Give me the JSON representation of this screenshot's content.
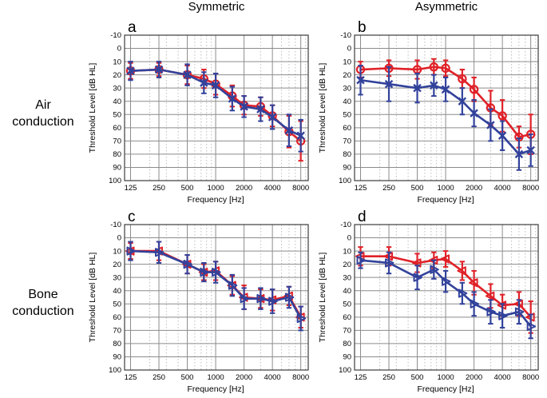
{
  "figure": {
    "column_titles": [
      "Symmetric",
      "Asymmetric"
    ],
    "row_labels": [
      {
        "line1": "Air",
        "line2": "conduction"
      },
      {
        "line1": "Bone",
        "line2": "conduction"
      }
    ]
  },
  "colors": {
    "red_series": "#e02128",
    "blue_series": "#32429b",
    "grid_major": "#8c8c8c",
    "grid_minor": "#bdbdbd",
    "axis_box": "#3c3c3c",
    "text": "#000000"
  },
  "chart_data": [
    {
      "type": "line",
      "panel_label": "a",
      "row_context": "Air conduction",
      "column_context": "Symmetric",
      "xlabel": "Frequency [Hz]",
      "ylabel": "Threshold Level [dB HL]",
      "x_scale": "log",
      "xlim": [
        108,
        9600
      ],
      "ylim": [
        -10,
        100
      ],
      "y_inverted": true,
      "xticks": [
        125,
        250,
        500,
        1000,
        2000,
        4000,
        8000
      ],
      "yticks": [
        -10,
        0,
        10,
        20,
        30,
        40,
        50,
        60,
        70,
        80,
        90,
        100
      ],
      "x_minor_gridlines": [
        200,
        300,
        400,
        600,
        700,
        800,
        900,
        3000,
        5000,
        6000,
        7000,
        9000
      ],
      "x": [
        125,
        250,
        500,
        750,
        1000,
        1500,
        2000,
        3000,
        4000,
        6000,
        8000
      ],
      "series": [
        {
          "color": "red",
          "marker": "circle",
          "values": [
            17,
            16,
            20,
            23,
            27,
            36,
            43,
            44,
            51,
            63,
            70
          ],
          "err": [
            6,
            5,
            7,
            7,
            8,
            8,
            7,
            7,
            8,
            12,
            15
          ]
        },
        {
          "color": "blue",
          "marker": "x",
          "values": [
            17,
            16,
            20,
            26,
            28,
            38,
            44,
            46,
            52,
            62,
            66
          ],
          "err": [
            7,
            6,
            8,
            8,
            9,
            9,
            8,
            9,
            9,
            12,
            12
          ]
        }
      ]
    },
    {
      "type": "line",
      "panel_label": "b",
      "row_context": "Air conduction",
      "column_context": "Asymmetric",
      "xlabel": "Frequency [Hz]",
      "ylabel": "Threshold Level [dB HL]",
      "x_scale": "log",
      "xlim": [
        108,
        9600
      ],
      "ylim": [
        -10,
        100
      ],
      "y_inverted": true,
      "xticks": [
        125,
        250,
        500,
        1000,
        2000,
        4000,
        8000
      ],
      "yticks": [
        -10,
        0,
        10,
        20,
        30,
        40,
        50,
        60,
        70,
        80,
        90,
        100
      ],
      "x_minor_gridlines": [
        200,
        300,
        400,
        600,
        700,
        800,
        900,
        3000,
        5000,
        6000,
        7000,
        9000
      ],
      "x": [
        125,
        250,
        500,
        750,
        1000,
        1500,
        2000,
        3000,
        4000,
        6000,
        8000
      ],
      "series": [
        {
          "color": "red",
          "marker": "circle",
          "values": [
            16,
            15,
            16,
            14,
            15,
            23,
            31,
            45,
            51,
            67,
            65
          ],
          "err": [
            6,
            6,
            7,
            6,
            6,
            7,
            9,
            13,
            12,
            8,
            15
          ]
        },
        {
          "color": "blue",
          "marker": "x",
          "values": [
            24,
            27,
            30,
            28,
            31,
            40,
            49,
            58,
            66,
            80,
            77
          ],
          "err": [
            11,
            13,
            11,
            8,
            9,
            10,
            10,
            12,
            11,
            12,
            12
          ]
        }
      ]
    },
    {
      "type": "line",
      "panel_label": "c",
      "row_context": "Bone conduction",
      "column_context": "Symmetric",
      "xlabel": "Frequency [Hz]",
      "ylabel": "Threshold Level [dB HL]",
      "x_scale": "log",
      "xlim": [
        108,
        9600
      ],
      "ylim": [
        -10,
        100
      ],
      "y_inverted": true,
      "xticks": [
        125,
        250,
        500,
        1000,
        2000,
        4000,
        8000
      ],
      "yticks": [
        -10,
        0,
        10,
        20,
        30,
        40,
        50,
        60,
        70,
        80,
        90,
        100
      ],
      "x_minor_gridlines": [
        200,
        300,
        400,
        600,
        700,
        800,
        900,
        3000,
        5000,
        6000,
        7000,
        9000
      ],
      "x": [
        125,
        250,
        500,
        750,
        1000,
        1500,
        2000,
        3000,
        4000,
        6000,
        8000
      ],
      "series": [
        {
          "color": "red",
          "marker": "triangle-left",
          "values": [
            10,
            10,
            20,
            26,
            25,
            36,
            45,
            46,
            47,
            44,
            60
          ],
          "err": [
            6,
            7,
            7,
            6,
            7,
            7,
            9,
            7,
            8,
            7,
            8
          ]
        },
        {
          "color": "blue",
          "marker": "triangle-right",
          "values": [
            10,
            11,
            20,
            26,
            26,
            36,
            46,
            46,
            48,
            45,
            61
          ],
          "err": [
            7,
            8,
            7,
            7,
            8,
            8,
            8,
            8,
            9,
            8,
            9
          ]
        }
      ]
    },
    {
      "type": "line",
      "panel_label": "d",
      "row_context": "Bone conduction",
      "column_context": "Asymmetric",
      "xlabel": "Frequency [Hz]",
      "ylabel": "Threshold Level [dB HL]",
      "x_scale": "log",
      "xlim": [
        108,
        9600
      ],
      "ylim": [
        -10,
        100
      ],
      "y_inverted": true,
      "xticks": [
        125,
        250,
        500,
        1000,
        2000,
        4000,
        8000
      ],
      "yticks": [
        -10,
        0,
        10,
        20,
        30,
        40,
        50,
        60,
        70,
        80,
        90,
        100
      ],
      "x_minor_gridlines": [
        200,
        300,
        400,
        600,
        700,
        800,
        900,
        3000,
        5000,
        6000,
        7000,
        9000
      ],
      "x": [
        125,
        250,
        500,
        750,
        1000,
        1500,
        2000,
        3000,
        4000,
        6000,
        8000
      ],
      "series": [
        {
          "color": "red",
          "marker": "triangle-left",
          "values": [
            14,
            14,
            19,
            17,
            16,
            25,
            34,
            44,
            51,
            50,
            60
          ],
          "err": [
            7,
            7,
            7,
            6,
            6,
            7,
            9,
            9,
            8,
            9,
            12
          ]
        },
        {
          "color": "blue",
          "marker": "triangle-right",
          "values": [
            17,
            19,
            30,
            24,
            33,
            42,
            50,
            56,
            59,
            56,
            67
          ],
          "err": [
            6,
            8,
            9,
            7,
            8,
            8,
            9,
            9,
            9,
            9,
            9
          ]
        }
      ]
    }
  ]
}
